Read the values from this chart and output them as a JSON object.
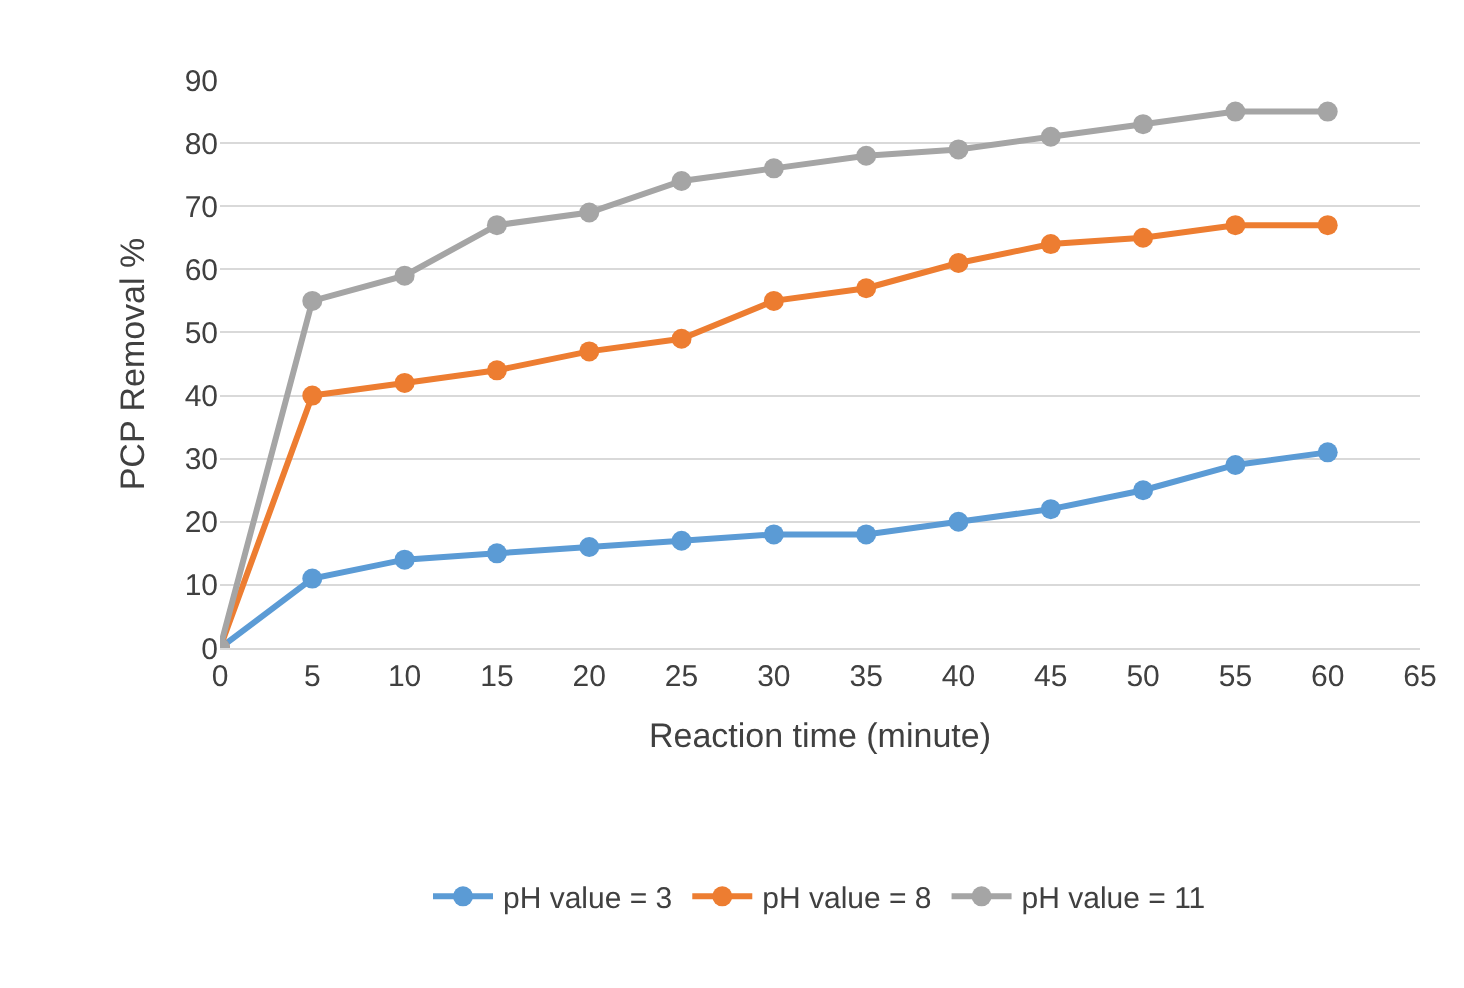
{
  "chart_data": {
    "type": "line",
    "xlabel": "Reaction time (minute)",
    "ylabel": "PCP Removal %",
    "x": [
      0,
      5,
      10,
      15,
      20,
      25,
      30,
      35,
      40,
      45,
      50,
      55,
      60
    ],
    "series": [
      {
        "name": "pH value = 3",
        "color": "#5b9bd5",
        "values": [
          0,
          11,
          14,
          15,
          16,
          17,
          18,
          18,
          20,
          22,
          25,
          29,
          31
        ]
      },
      {
        "name": "pH value = 8",
        "color": "#ed7d31",
        "values": [
          0,
          40,
          42,
          44,
          47,
          49,
          55,
          57,
          61,
          64,
          65,
          67,
          67
        ]
      },
      {
        "name": "pH value = 11",
        "color": "#a5a5a5",
        "values": [
          0,
          55,
          59,
          67,
          69,
          74,
          76,
          78,
          79,
          81,
          83,
          85,
          85
        ]
      }
    ],
    "xlim": [
      0,
      65
    ],
    "xticks": [
      0,
      5,
      10,
      15,
      20,
      25,
      30,
      35,
      40,
      45,
      50,
      55,
      60,
      65
    ],
    "ylim": [
      0,
      90
    ],
    "yticks": [
      0,
      10,
      20,
      30,
      40,
      50,
      60,
      70,
      80,
      90
    ],
    "grid": "y",
    "legend": "bottom",
    "marker": "circle",
    "line_style": "solid"
  }
}
